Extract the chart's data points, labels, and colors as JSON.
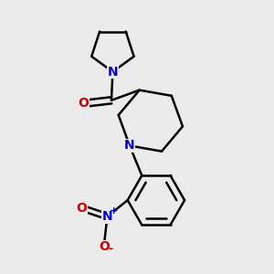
{
  "bg_color": "#ebebeb",
  "bond_color": "#000000",
  "N_color": "#0000cc",
  "O_color": "#cc0000",
  "line_width": 1.8,
  "font_size": 10,
  "figsize": [
    3.0,
    3.0
  ],
  "dpi": 100,
  "xlim": [
    0,
    10
  ],
  "ylim": [
    0,
    10
  ]
}
